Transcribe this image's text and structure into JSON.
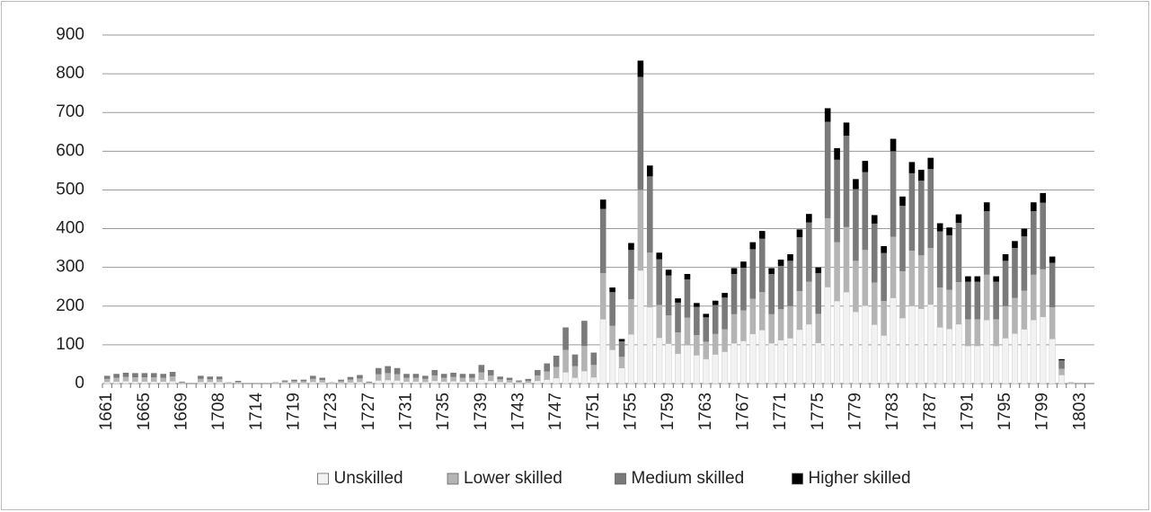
{
  "chart_data": {
    "type": "stacked_bar",
    "categories": [
      "1661",
      null,
      null,
      null,
      "1665",
      null,
      null,
      null,
      "1669",
      null,
      null,
      null,
      "1708",
      null,
      null,
      null,
      "1714",
      null,
      null,
      null,
      "1719",
      null,
      null,
      null,
      "1723",
      null,
      null,
      null,
      "1727",
      null,
      null,
      null,
      "1731",
      null,
      null,
      null,
      "1735",
      null,
      null,
      null,
      "1739",
      null,
      null,
      null,
      "1743",
      null,
      null,
      null,
      "1747",
      null,
      null,
      null,
      "1751",
      null,
      null,
      null,
      "1755",
      null,
      null,
      null,
      "1759",
      null,
      null,
      null,
      "1763",
      null,
      null,
      null,
      "1767",
      null,
      null,
      null,
      "1771",
      null,
      null,
      null,
      "1775",
      null,
      null,
      null,
      "1779",
      null,
      null,
      null,
      "1783",
      null,
      null,
      null,
      "1787",
      null,
      null,
      null,
      "1791",
      null,
      null,
      null,
      "1795",
      null,
      null,
      null,
      "1799",
      null,
      null,
      null,
      "1803",
      null
    ],
    "series": [
      {
        "name": "Unskilled",
        "color": "#f2f2f2",
        "values": [
          4,
          5,
          6,
          5,
          5,
          5,
          5,
          6,
          1,
          0,
          4,
          4,
          4,
          1,
          1,
          0,
          0,
          0,
          1,
          2,
          2,
          2,
          4,
          3,
          1,
          2,
          3,
          4,
          1,
          8,
          9,
          8,
          5,
          5,
          4,
          7,
          5,
          6,
          5,
          5,
          10,
          7,
          4,
          3,
          2,
          2,
          7,
          10,
          14,
          29,
          15,
          32,
          16,
          166,
          87,
          40,
          127,
          292,
          197,
          118,
          103,
          77,
          99,
          73,
          63,
          75,
          82,
          104,
          110,
          128,
          138,
          104,
          112,
          117,
          139,
          153,
          105,
          249,
          213,
          236,
          185,
          201,
          152,
          124,
          221,
          169,
          200,
          193,
          204,
          145,
          141,
          153,
          97,
          97,
          164,
          97,
          117,
          129,
          140,
          164,
          172,
          115,
          22,
          1,
          0,
          0
        ]
      },
      {
        "name": "Lower skilled",
        "color": "#b4b4b4",
        "values": [
          8,
          10,
          11,
          11,
          11,
          11,
          10,
          12,
          2,
          0,
          8,
          7,
          7,
          1,
          3,
          0,
          0,
          0,
          1,
          3,
          4,
          4,
          8,
          6,
          1,
          4,
          7,
          9,
          2,
          16,
          18,
          16,
          10,
          10,
          8,
          14,
          10,
          11,
          10,
          10,
          19,
          14,
          7,
          6,
          3,
          5,
          14,
          21,
          29,
          58,
          30,
          65,
          32,
          119,
          62,
          29,
          91,
          208,
          141,
          85,
          73,
          55,
          71,
          52,
          45,
          53,
          58,
          75,
          79,
          91,
          98,
          75,
          80,
          83,
          100,
          110,
          75,
          178,
          152,
          168,
          132,
          144,
          109,
          89,
          158,
          121,
          143,
          138,
          146,
          103,
          101,
          109,
          69,
          69,
          117,
          69,
          83,
          92,
          100,
          117,
          123,
          82,
          16,
          1,
          0,
          0
        ]
      },
      {
        "name": "Medium skilled",
        "color": "#7a7a7a",
        "values": [
          8,
          10,
          11,
          11,
          11,
          11,
          10,
          12,
          2,
          0,
          8,
          7,
          7,
          1,
          3,
          0,
          0,
          0,
          1,
          3,
          4,
          4,
          8,
          6,
          1,
          4,
          7,
          9,
          2,
          16,
          18,
          16,
          10,
          10,
          8,
          14,
          10,
          11,
          10,
          10,
          19,
          14,
          7,
          6,
          3,
          5,
          14,
          21,
          29,
          58,
          30,
          65,
          32,
          166,
          87,
          40,
          127,
          292,
          197,
          118,
          103,
          77,
          99,
          73,
          63,
          75,
          82,
          104,
          110,
          128,
          138,
          104,
          112,
          117,
          139,
          153,
          105,
          249,
          213,
          236,
          185,
          201,
          152,
          124,
          221,
          169,
          200,
          193,
          204,
          145,
          141,
          153,
          97,
          97,
          164,
          97,
          117,
          129,
          140,
          164,
          172,
          115,
          22,
          1,
          0,
          0
        ]
      },
      {
        "name": "Higher skilled",
        "color": "#000000",
        "values": [
          0,
          0,
          0,
          0,
          0,
          0,
          0,
          0,
          0,
          0,
          0,
          0,
          0,
          0,
          0,
          0,
          0,
          0,
          0,
          0,
          0,
          0,
          0,
          0,
          0,
          0,
          0,
          0,
          0,
          0,
          0,
          0,
          0,
          0,
          0,
          0,
          0,
          0,
          0,
          0,
          0,
          0,
          0,
          0,
          0,
          0,
          0,
          0,
          0,
          0,
          0,
          0,
          0,
          24,
          12,
          6,
          18,
          42,
          28,
          17,
          15,
          11,
          14,
          10,
          9,
          11,
          12,
          15,
          16,
          18,
          20,
          15,
          16,
          17,
          20,
          22,
          15,
          35,
          30,
          34,
          26,
          29,
          22,
          18,
          32,
          24,
          29,
          28,
          29,
          21,
          20,
          22,
          14,
          14,
          23,
          14,
          17,
          18,
          20,
          23,
          25,
          16,
          3,
          0,
          0,
          0
        ]
      }
    ],
    "ylim": [
      0,
      900
    ],
    "yticks": [
      0,
      100,
      200,
      300,
      400,
      500,
      600,
      700,
      800,
      900
    ],
    "grid": true,
    "legend": "bottom"
  }
}
